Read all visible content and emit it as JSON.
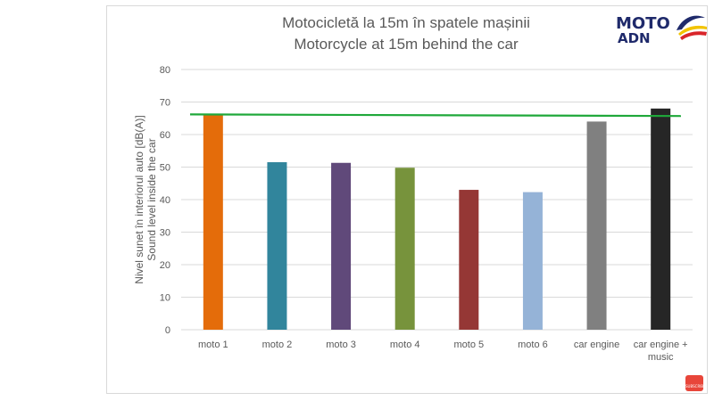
{
  "chart_data": {
    "type": "bar",
    "title_lines": [
      "Motocicletă la 15m în spatele mașinii",
      "Motorcycle at 15m behind the car"
    ],
    "ylabel_lines": [
      "Nivel sunet  în interiorul auto [dB(A)]",
      "Sound level inside the car"
    ],
    "xlabel": "",
    "categories": [
      "moto 1",
      "moto 2",
      "moto 3",
      "moto 4",
      "moto 5",
      "moto 6",
      "car engine",
      "car engine + music"
    ],
    "category_label_lines": [
      [
        "moto 1"
      ],
      [
        "moto 2"
      ],
      [
        "moto 3"
      ],
      [
        "moto 4"
      ],
      [
        "moto 5"
      ],
      [
        "moto 6"
      ],
      [
        "car engine"
      ],
      [
        "car engine +",
        "music"
      ]
    ],
    "values": [
      66,
      51.5,
      51.3,
      49.8,
      43,
      42.3,
      64,
      68
    ],
    "bar_colors": [
      "#e46c0a",
      "#31859c",
      "#60497a",
      "#77933c",
      "#953735",
      "#95b3d7",
      "#808080",
      "#262626"
    ],
    "ylim": [
      0,
      80
    ],
    "yticks": [
      0,
      10,
      20,
      30,
      40,
      50,
      60,
      70,
      80
    ],
    "grid": true,
    "legend": "none",
    "reference_line": {
      "start": 66.2,
      "end": 65.7,
      "color": "#1fa83a"
    }
  },
  "logo": {
    "line1": "MOTO",
    "line2": "ADN"
  },
  "subscribe_badge": {
    "label": "SUBSCRIBE"
  }
}
